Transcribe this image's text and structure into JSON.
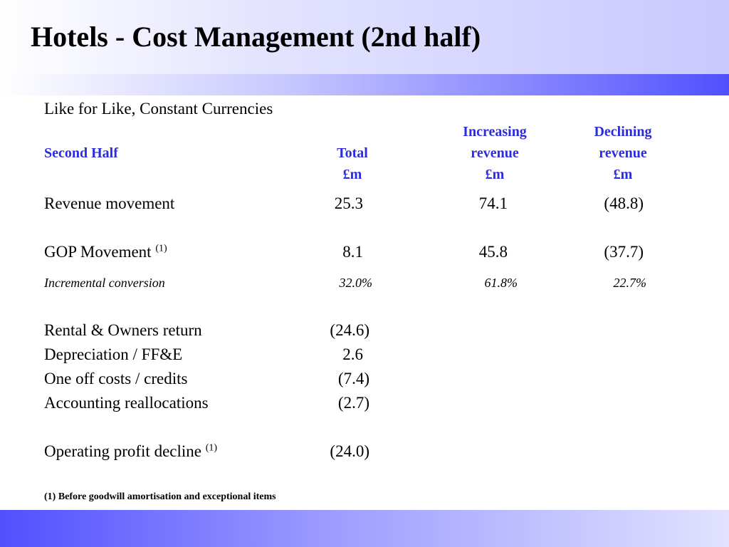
{
  "slide": {
    "title": "Hotels - Cost Management (2nd half)"
  },
  "table": {
    "caption": "Like for Like, Constant Currencies",
    "row_label_header": "Second Half",
    "columns": [
      {
        "line1": "",
        "line2": "Total",
        "unit": "£m"
      },
      {
        "line1": "Increasing",
        "line2": "revenue",
        "unit": "£m"
      },
      {
        "line1": "Declining",
        "line2": "revenue",
        "unit": "£m"
      }
    ],
    "revenue_movement": {
      "label": "Revenue movement",
      "total": "25.3",
      "increasing": "74.1",
      "declining": "(48.8)"
    },
    "gop_movement": {
      "label": "GOP Movement ",
      "footnote_ref": "(1)",
      "total": "8.1",
      "increasing": "45.8",
      "declining": "(37.7)"
    },
    "incremental_conversion": {
      "label": "Incremental conversion",
      "total": "32.0%",
      "increasing": "61.8%",
      "declining": "22.7%"
    },
    "rental_owners": {
      "label": "Rental & Owners return",
      "total": "(24.6)"
    },
    "depreciation": {
      "label": "Depreciation / FF&E",
      "total": "2.6"
    },
    "one_off": {
      "label": "One off costs / credits",
      "total": "(7.4)"
    },
    "accounting": {
      "label": "Accounting reallocations",
      "total": "(2.7)"
    },
    "operating_profit": {
      "label": "Operating profit decline ",
      "footnote_ref": "(1)",
      "total": "(24.0)"
    }
  },
  "footnote": "(1) Before goodwill amortisation and exceptional items",
  "colors": {
    "header_text": "#2b2be0",
    "band_dark": "#5050ff",
    "band_light": "#c8c8ff"
  }
}
